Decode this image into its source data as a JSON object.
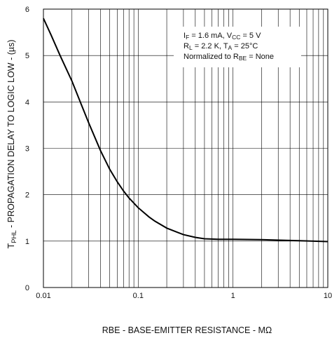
{
  "chart_data": {
    "type": "line",
    "x_scale": "log",
    "xlim": [
      0.01,
      10
    ],
    "ylim": [
      0,
      6
    ],
    "grid": true,
    "x_ticks": [
      "0.01",
      "0.1",
      "1",
      "10"
    ],
    "y_ticks": [
      "0",
      "1",
      "2",
      "3",
      "4",
      "5",
      "6"
    ],
    "xlabel": "RBE - BASE-EMITTER RESISTANCE - MΩ",
    "ylabel": {
      "main": "T",
      "sub": "PHL",
      "rest": " - PROPAGATION DELAY TO LOGIC LOW -  (µs)"
    },
    "annotation": [
      [
        {
          "t": "I"
        },
        {
          "t": "F",
          "sub": true
        },
        {
          "t": " = 1.6 mA, V"
        },
        {
          "t": "CC",
          "sub": true
        },
        {
          "t": " = 5 V"
        }
      ],
      [
        {
          "t": "R"
        },
        {
          "t": "L",
          "sub": true
        },
        {
          "t": " = 2.2 K, T"
        },
        {
          "t": "A",
          "sub": true
        },
        {
          "t": " = 25°C"
        }
      ],
      [
        {
          "t": "Normalized to R"
        },
        {
          "t": "BE",
          "sub": true
        },
        {
          "t": " = None"
        }
      ]
    ],
    "series": [
      {
        "x": [
          0.01,
          0.012,
          0.015,
          0.02,
          0.025,
          0.03,
          0.04,
          0.05,
          0.06,
          0.07,
          0.08,
          0.1,
          0.13,
          0.15,
          0.2,
          0.3,
          0.4,
          0.5,
          0.7,
          1,
          2,
          5,
          10
        ],
        "y": [
          5.8,
          5.45,
          5.0,
          4.45,
          3.95,
          3.55,
          2.95,
          2.55,
          2.28,
          2.08,
          1.93,
          1.72,
          1.52,
          1.43,
          1.28,
          1.14,
          1.08,
          1.05,
          1.04,
          1.04,
          1.03,
          1.01,
          0.99
        ]
      }
    ]
  }
}
